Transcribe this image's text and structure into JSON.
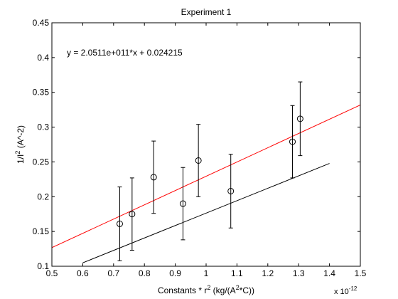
{
  "chart_data": {
    "type": "scatter",
    "title": "Experiment 1",
    "xlabel": "Constants * r^2 (kg/(A^2*C))",
    "xlabel_parts": {
      "pre": "Constants * r",
      "sup1": "2",
      "mid": " (kg/(A",
      "sup2": "2",
      "post": "*C))"
    },
    "ylabel": "1/I^2 (A^-2)",
    "ylabel_parts": {
      "pre": "1/I",
      "sup": "2",
      "post": " (A^-2)"
    },
    "x_exponent_label": "x 10",
    "x_exponent_sup": "-12",
    "xlim": [
      0.5,
      1.5
    ],
    "ylim": [
      0.1,
      0.45
    ],
    "xticks": [
      "0.5",
      "0.6",
      "0.7",
      "0.8",
      "0.9",
      "1",
      "1.1",
      "1.2",
      "1.3",
      "1.4",
      "1.5"
    ],
    "yticks": [
      "0.1",
      "0.15",
      "0.2",
      "0.25",
      "0.3",
      "0.35",
      "0.4",
      "0.45"
    ],
    "x_tick_values": [
      0.5,
      0.6,
      0.7,
      0.8,
      0.9,
      1.0,
      1.1,
      1.2,
      1.3,
      1.4,
      1.5
    ],
    "y_tick_values": [
      0.1,
      0.15,
      0.2,
      0.25,
      0.3,
      0.35,
      0.4,
      0.45
    ],
    "equation": "y = 2.0511e+011*x + 0.024215",
    "grid": false,
    "series": [
      {
        "marker": "circle",
        "color": "#000000",
        "x": [
          0.72,
          0.76,
          0.83,
          0.925,
          0.975,
          1.08,
          1.28,
          1.305
        ],
        "y": [
          0.161,
          0.175,
          0.228,
          0.19,
          0.252,
          0.208,
          0.279,
          0.312
        ],
        "error": [
          0.053,
          0.052,
          0.052,
          0.052,
          0.052,
          0.053,
          0.052,
          0.053
        ]
      }
    ],
    "lines": [
      {
        "color": "#ff0000",
        "x": [
          0.5,
          1.5
        ],
        "y": [
          0.1268,
          0.3319
        ]
      },
      {
        "color": "#000000",
        "x": [
          0.6,
          1.4
        ],
        "y": [
          0.1049,
          0.2478
        ]
      }
    ]
  }
}
